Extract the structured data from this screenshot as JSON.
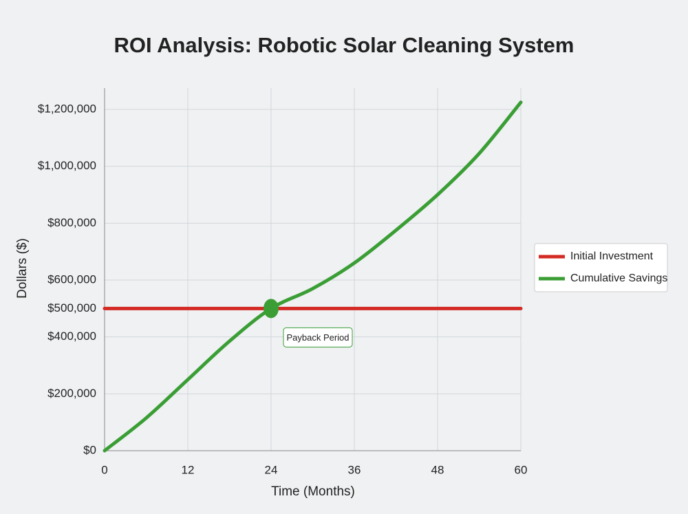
{
  "chart_data": {
    "type": "line",
    "title": "ROI Analysis: Robotic Solar Cleaning System",
    "x_label": "Time (Months)",
    "y_label": "Dollars ($)",
    "x": [
      0,
      6,
      12,
      18,
      24,
      30,
      36,
      42,
      48,
      54,
      60
    ],
    "series": [
      {
        "name": "Initial Investment",
        "color": "#d42a24",
        "values": [
          500000,
          500000,
          500000,
          500000,
          500000,
          500000,
          500000,
          500000,
          500000,
          500000,
          500000
        ]
      },
      {
        "name": "Cumulative Savings",
        "color": "#3a9e35",
        "values": [
          0,
          115000,
          250000,
          385000,
          500000,
          570000,
          660000,
          775000,
          900000,
          1045000,
          1225000
        ]
      }
    ],
    "xlim": [
      0,
      60
    ],
    "xticks": [
      0,
      12,
      24,
      36,
      48,
      60
    ],
    "ylim": [
      0,
      1275000
    ],
    "yticks": [
      {
        "value": 0,
        "label": "$0"
      },
      {
        "value": 200000,
        "label": "$200,000"
      },
      {
        "value": 400000,
        "label": "$400,000"
      },
      {
        "value": 500000,
        "label": "$500,000"
      },
      {
        "value": 600000,
        "label": "$600,000"
      },
      {
        "value": 800000,
        "label": "$800,000"
      },
      {
        "value": 1000000,
        "label": "$1,000,000"
      },
      {
        "value": 1200000,
        "label": "$1,200,000"
      }
    ],
    "grid": true,
    "legend": "right",
    "annotations": [
      {
        "text": "Payback Period",
        "x": 24,
        "y": 500000
      }
    ]
  }
}
